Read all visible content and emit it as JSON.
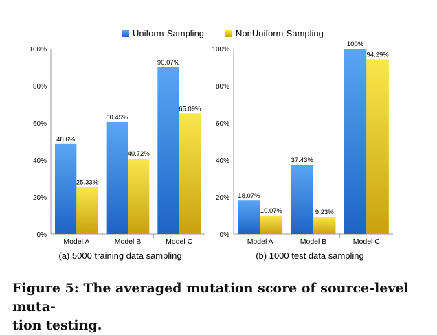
{
  "legend": [
    {
      "label": "Uniform-Sampling",
      "color": "#3a7fd6"
    },
    {
      "label": "NonUniform-Sampling",
      "color": "#f0d233"
    }
  ],
  "colors": {
    "uniform_top": "#5aa6f5",
    "uniform_bottom": "#1f63c4",
    "nonuniform_top": "#f9e74a",
    "nonuniform_bottom": "#c9a20e",
    "axis": "#9a9a9a"
  },
  "chart_data": [
    {
      "type": "bar",
      "subtitle": "(a) 5000 training data sampling",
      "categories": [
        "Model A",
        "Model B",
        "Model C"
      ],
      "series": [
        {
          "name": "Uniform-Sampling",
          "values": [
            48.6,
            60.45,
            90.07
          ],
          "labels": [
            "48.6%",
            "60.45%",
            "90.07%"
          ]
        },
        {
          "name": "NonUniform-Sampling",
          "values": [
            25.33,
            40.72,
            65.09
          ],
          "labels": [
            "25.33%",
            "40.72%",
            "65.09%"
          ]
        }
      ],
      "yticks": [
        "0%",
        "20%",
        "40%",
        "60%",
        "80%",
        "100%"
      ],
      "ylim": [
        0,
        100
      ]
    },
    {
      "type": "bar",
      "subtitle": "(b) 1000 test data sampling",
      "categories": [
        "Model A",
        "Model B",
        "Model C"
      ],
      "series": [
        {
          "name": "Uniform-Sampling",
          "values": [
            18.07,
            37.43,
            100
          ],
          "labels": [
            "18.07%",
            "37.43%",
            "100%"
          ]
        },
        {
          "name": "NonUniform-Sampling",
          "values": [
            10.07,
            9.23,
            94.29
          ],
          "labels": [
            "10.07%",
            "9.23%",
            "94.29%"
          ]
        }
      ],
      "yticks": [
        "0%",
        "20%",
        "40%",
        "60%",
        "80%",
        "100%"
      ],
      "ylim": [
        0,
        100
      ]
    }
  ],
  "caption": {
    "line1": "Figure 5: The averaged mutation score of source-level muta-",
    "line2": "tion testing."
  }
}
